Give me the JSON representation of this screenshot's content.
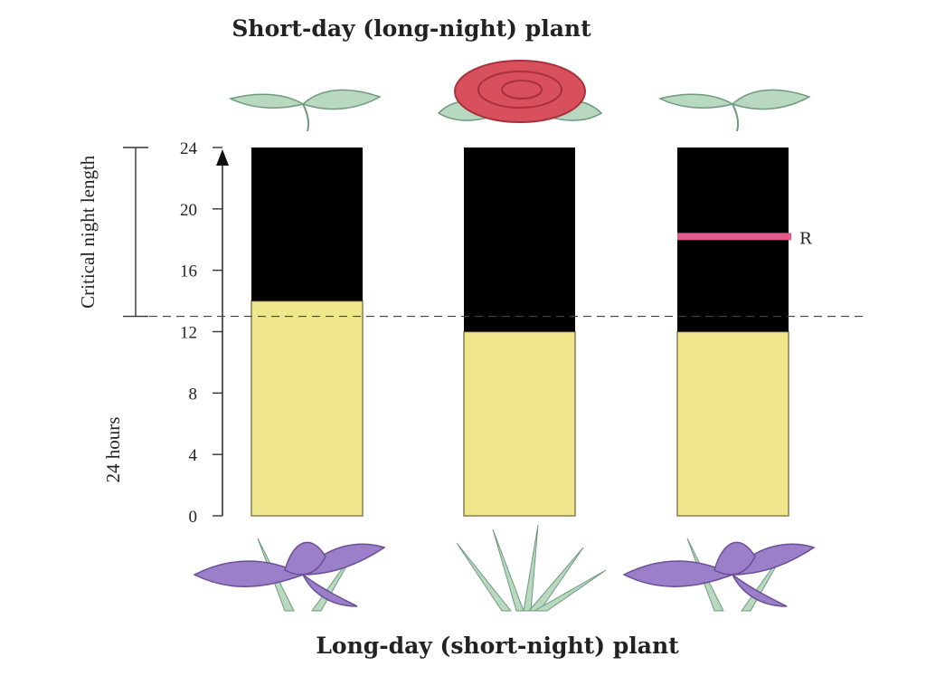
{
  "top_label": "Short-day (long-night) plant",
  "bottom_label": "Long-day (short-night) plant",
  "axis": {
    "name": "24 hours",
    "ticks": [
      "0",
      "4",
      "8",
      "12",
      "16",
      "20",
      "24"
    ],
    "min": 0,
    "max": 24
  },
  "bracket_label": "Critical night length",
  "critical_night_hours": 11,
  "flash_label": "R",
  "colors": {
    "day": "#F0E68C",
    "night": "#000000",
    "flash": "#E05A8A",
    "leaf": "#B8D8C0",
    "rose": "#D8505C",
    "iris": "#9B7FC8"
  },
  "columns": [
    {
      "day_hours": 14,
      "night_hours": 10,
      "flash_at": null
    },
    {
      "day_hours": 12,
      "night_hours": 12,
      "flash_at": null
    },
    {
      "day_hours": 12,
      "night_hours": 12,
      "flash_at": 18.2
    }
  ]
}
